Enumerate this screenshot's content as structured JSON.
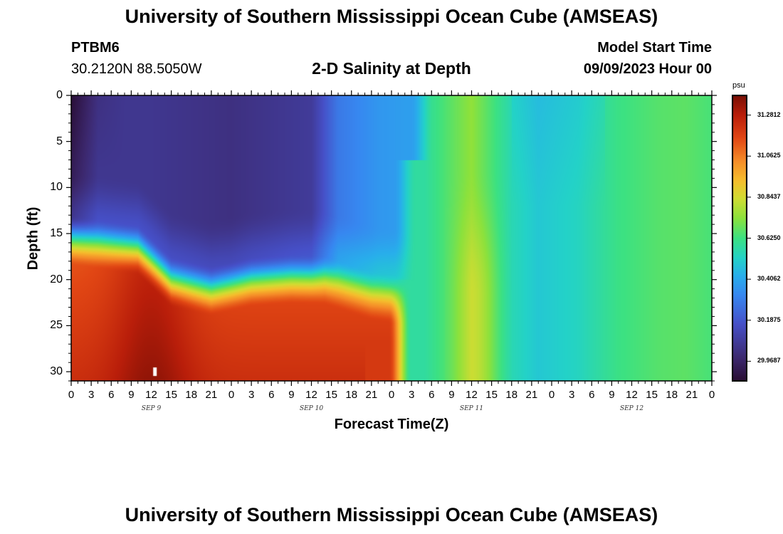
{
  "title": "University of Southern Mississippi Ocean Cube (AMSEAS)",
  "footer_title": "University of Southern Mississippi Ocean Cube (AMSEAS)",
  "station": {
    "id": "PTBM6",
    "coords": "30.2120N  88.5050W"
  },
  "model": {
    "label": "Model Start Time",
    "value": "09/09/2023 Hour 00"
  },
  "chart_data": {
    "type": "heatmap",
    "title": "2-D Salinity at Depth",
    "xlabel": "Forecast Time(Z)",
    "ylabel": "Depth (ft)",
    "x_tick_labels": [
      "0",
      "3",
      "6",
      "9",
      "12",
      "15",
      "18",
      "21",
      "0",
      "3",
      "6",
      "9",
      "12",
      "15",
      "18",
      "21",
      "0",
      "3",
      "6",
      "9",
      "12",
      "15",
      "18",
      "21",
      "0",
      "3",
      "6",
      "9",
      "12",
      "15",
      "18",
      "21",
      "0"
    ],
    "x_range_hours": [
      0,
      96
    ],
    "day_labels": [
      "SEP 9",
      "SEP 10",
      "SEP 11",
      "SEP 12"
    ],
    "y_tick_labels": [
      "0",
      "5",
      "10",
      "15",
      "20",
      "25",
      "30"
    ],
    "y_range_ft": [
      0,
      31
    ],
    "colorbar": {
      "unit": "psu",
      "range": [
        29.86,
        31.39
      ],
      "tick_labels": [
        "31.2812",
        "31.0625",
        "30.8437",
        "30.6250",
        "30.4062",
        "30.1875",
        "29.9687"
      ],
      "tick_values": [
        31.2812,
        31.0625,
        30.8437,
        30.625,
        30.4062,
        30.1875,
        29.9687
      ]
    },
    "marker": {
      "label": "",
      "time_hour": 12.5,
      "depth_ft": 30
    },
    "description_points": [
      {
        "time_hour": 2,
        "depth_ft": 3,
        "salinity": 29.92
      },
      {
        "time_hour": 24,
        "depth_ft": 8,
        "salinity": 30.02
      },
      {
        "time_hour": 42,
        "depth_ft": 3,
        "salinity": 30.3
      },
      {
        "time_hour": 12,
        "depth_ft": 29,
        "salinity": 31.3
      },
      {
        "time_hour": 60,
        "depth_ft": 15,
        "salinity": 30.72
      },
      {
        "time_hour": 72,
        "depth_ft": 5,
        "salinity": 30.52
      },
      {
        "time_hour": 90,
        "depth_ft": 20,
        "salinity": 30.66
      }
    ]
  },
  "colors": {
    "frame": "#000000",
    "background": "#ffffff"
  }
}
